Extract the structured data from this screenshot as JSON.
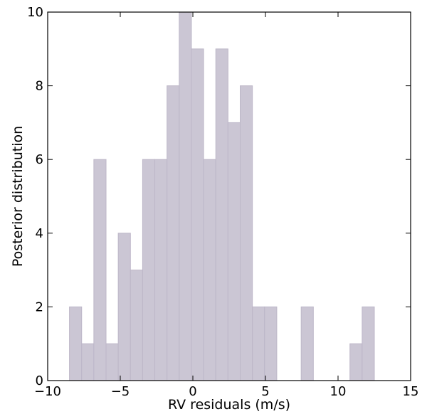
{
  "chart_data": {
    "type": "bar",
    "title": "",
    "xlabel": "RV residuals (m/s)",
    "ylabel": "Posterior distribution",
    "xlim": [
      -10,
      15
    ],
    "ylim": [
      0,
      10
    ],
    "xticks": [
      -10,
      -5,
      0,
      5,
      10,
      15
    ],
    "yticks": [
      0,
      2,
      4,
      6,
      8,
      10
    ],
    "xtick_labels": [
      "−10",
      "−5",
      "0",
      "5",
      "10",
      "15"
    ],
    "ytick_labels": [
      "0",
      "2",
      "4",
      "6",
      "8",
      "10"
    ],
    "grid": false,
    "bin_width": 0.84,
    "bin_start": -8.5,
    "values": [
      2,
      1,
      6,
      1,
      4,
      3,
      6,
      6,
      8,
      10,
      9,
      6,
      9,
      7,
      8,
      2,
      2,
      0,
      0,
      2,
      0,
      0,
      0,
      1,
      2
    ],
    "colors": {
      "bar_fill": "#cbc6d4",
      "bar_edge": "#bdb7c8"
    }
  }
}
